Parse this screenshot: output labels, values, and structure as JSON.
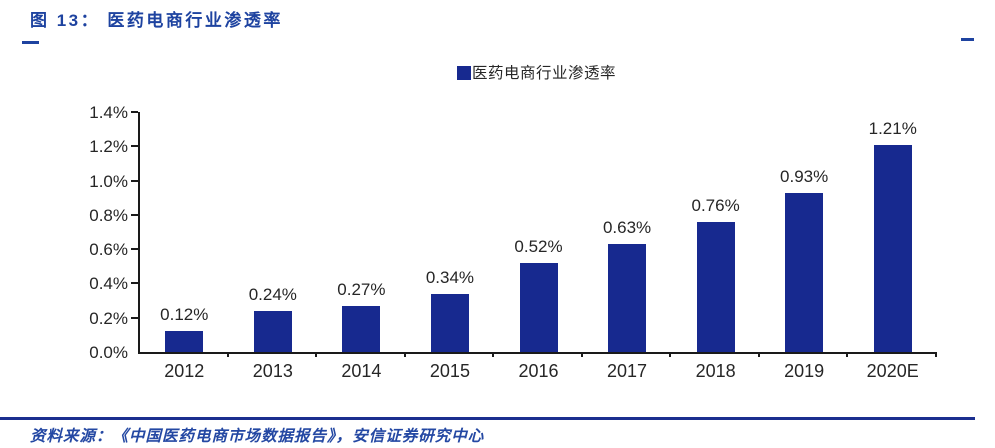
{
  "figure": {
    "title": "图 13： 医药电商行业渗透率",
    "source": "资料来源：《中国医药电商市场数据报告》，安信证券研究中心"
  },
  "legend": {
    "label": "医药电商行业渗透率"
  },
  "chart_data": {
    "type": "bar",
    "title": "医药电商行业渗透率",
    "categories": [
      "2012",
      "2013",
      "2014",
      "2015",
      "2016",
      "2017",
      "2018",
      "2019",
      "2020E"
    ],
    "values": [
      0.12,
      0.24,
      0.27,
      0.34,
      0.52,
      0.63,
      0.76,
      0.93,
      1.21
    ],
    "value_labels": [
      "0.12%",
      "0.24%",
      "0.27%",
      "0.34%",
      "0.52%",
      "0.63%",
      "0.76%",
      "0.93%",
      "1.21%"
    ],
    "xlabel": "",
    "ylabel": "",
    "ylim": [
      0,
      1.4
    ],
    "ytick_step": 0.2,
    "ytick_labels": [
      "0.0%",
      "0.2%",
      "0.4%",
      "0.6%",
      "0.8%",
      "1.0%",
      "1.2%",
      "1.4%"
    ],
    "grid": false,
    "legend_position": "top-center"
  },
  "colors": {
    "bar": "#17298f",
    "title": "#1e43a0",
    "rule": "#1b2f8f",
    "source_text": "#2448a3",
    "axis": "#1a1a1a",
    "label_ink": "#262626"
  }
}
